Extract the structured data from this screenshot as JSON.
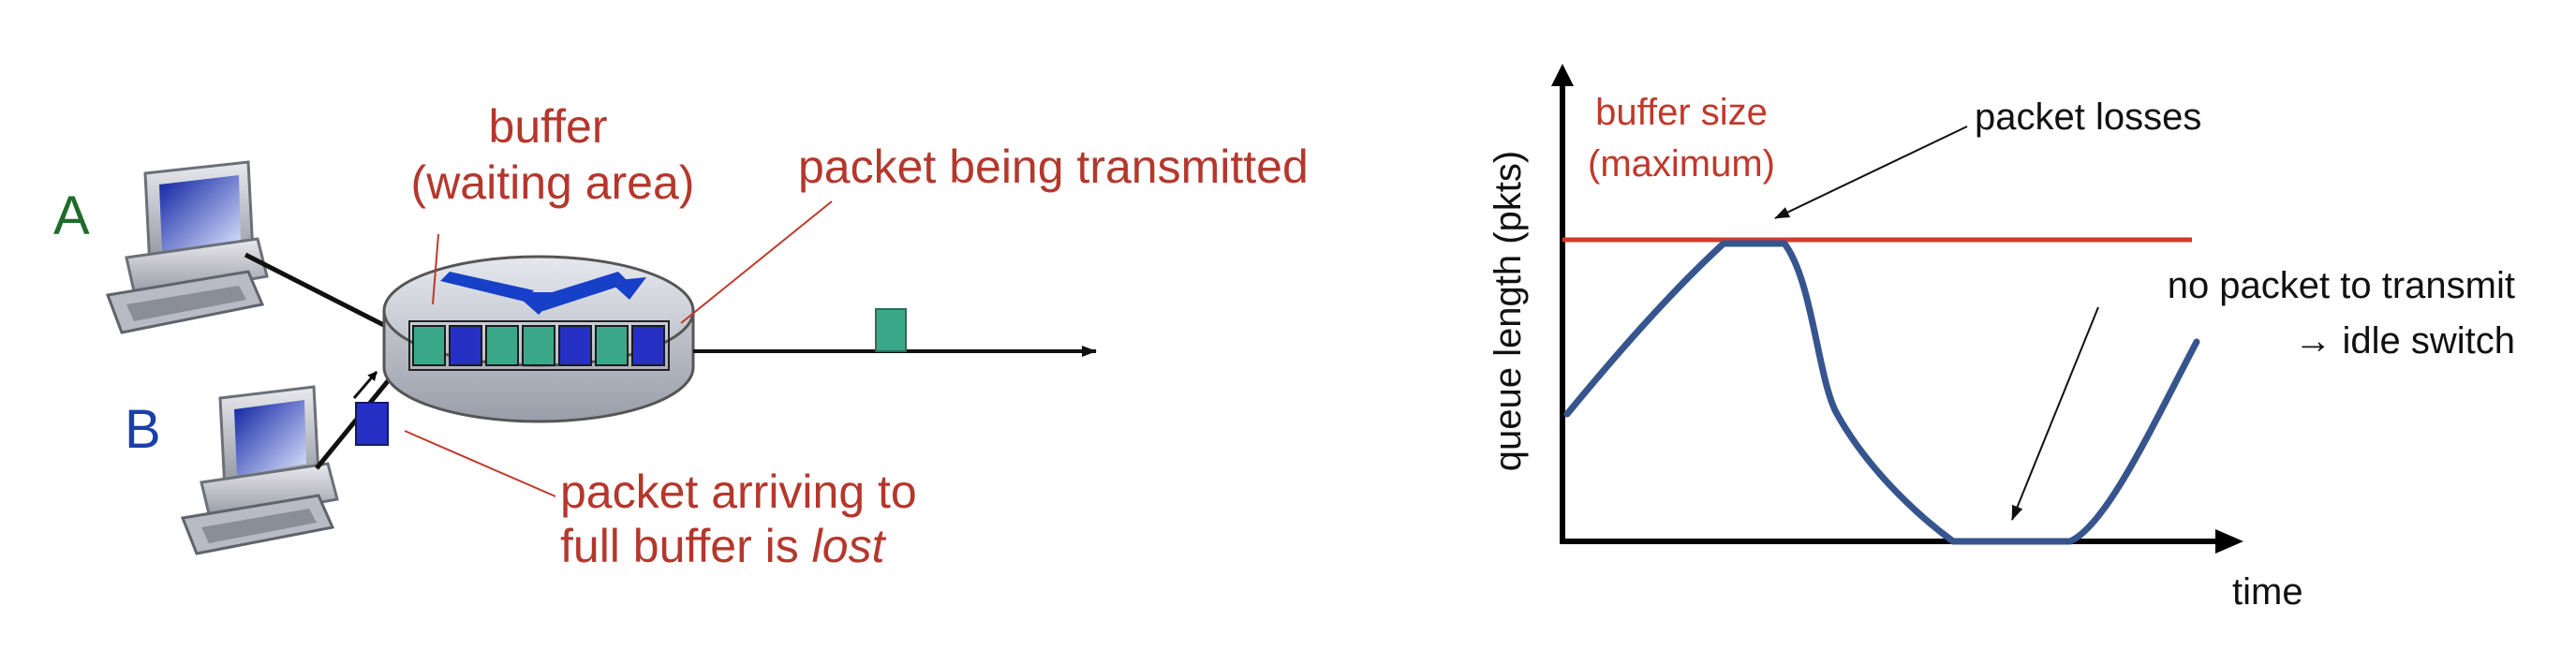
{
  "left_diagram": {
    "host_a_label": "A",
    "host_b_label": "B",
    "buffer_title_line1": "buffer",
    "buffer_title_line2": "(waiting area)",
    "transmitting_label": "packet being transmitted",
    "lost_label_line1": "packet arriving to",
    "lost_label_line2_prefix": "full buffer is ",
    "lost_label_line2_emphasis": "lost",
    "queue_packets": [
      "green",
      "blue",
      "green",
      "green",
      "blue",
      "green",
      "blue"
    ],
    "colors": {
      "text_red": "#b5372c",
      "host_a": "#1f6b2a",
      "host_b": "#1b3fa8",
      "packet_green": "#3aa888",
      "packet_blue": "#2730c4",
      "router_body": "#c9ccd4",
      "router_arrows": "#1740c8"
    }
  },
  "right_chart": {
    "y_axis_label": "queue length (pkts)",
    "x_axis_label": "time",
    "buffer_line_label_line1": "buffer size",
    "buffer_line_label_line2": "(maximum)",
    "losses_label": "packet losses",
    "idle_label_line1": "no packet to transmit",
    "idle_label_line2": "→ idle switch",
    "colors": {
      "buffer_line": "#d23b2a",
      "curve": "#36548d",
      "axis": "#000000",
      "label_red": "#c0392b"
    }
  }
}
